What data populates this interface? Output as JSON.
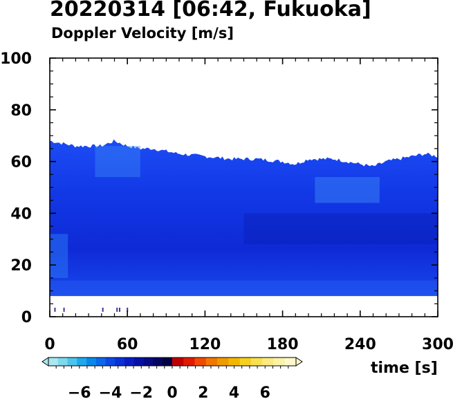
{
  "chart_data": {
    "type": "heatmap",
    "title": "20220314 [06:42, Fukuoka]",
    "subtitle": "Doppler Velocity [m/s]",
    "xlabel": "time [s]",
    "xlim": [
      0,
      300
    ],
    "ylim": [
      0,
      100
    ],
    "x_ticks": [
      0,
      60,
      120,
      180,
      240,
      300
    ],
    "y_ticks": [
      0,
      20,
      40,
      60,
      80,
      100
    ],
    "data_bottom": 8,
    "echo_top_profile": {
      "t": [
        0,
        10,
        20,
        30,
        40,
        45,
        50,
        55,
        60,
        70,
        80,
        90,
        100,
        120,
        140,
        160,
        180,
        190,
        200,
        210,
        220,
        230,
        240,
        250,
        260,
        270,
        280,
        290,
        300
      ],
      "height": [
        68,
        67,
        66,
        66,
        66,
        67,
        68,
        67,
        66,
        65,
        65,
        64,
        63,
        62,
        61,
        61,
        60,
        59,
        61,
        61,
        61,
        60,
        59,
        58,
        60,
        61,
        62,
        63,
        62
      ]
    },
    "velocity_range": [
      -8,
      8
    ],
    "colorbar": {
      "ticks": [
        -6,
        -4,
        -2,
        0,
        2,
        4,
        6
      ],
      "tick_labels": [
        "−6",
        "−4",
        "−2",
        "0",
        "2",
        "4",
        "6"
      ],
      "colors_negative": [
        "#a8e8f0",
        "#7fd8ec",
        "#4cc4ec",
        "#1fa8ec",
        "#0a88ea",
        "#0c68e8",
        "#0c48e2",
        "#0a30d8",
        "#0a1cc4",
        "#0810a4",
        "#060a84",
        "#040660",
        "#020340"
      ],
      "colors_positive": [
        "#c00000",
        "#e01a00",
        "#f04a00",
        "#f07800",
        "#f09a00",
        "#f2b800",
        "#f5d020",
        "#f8e050",
        "#faea80",
        "#fcf2a8",
        "#fef8cc"
      ]
    },
    "low_level_marks_t": [
      4,
      11,
      41,
      52,
      54,
      60
    ]
  }
}
